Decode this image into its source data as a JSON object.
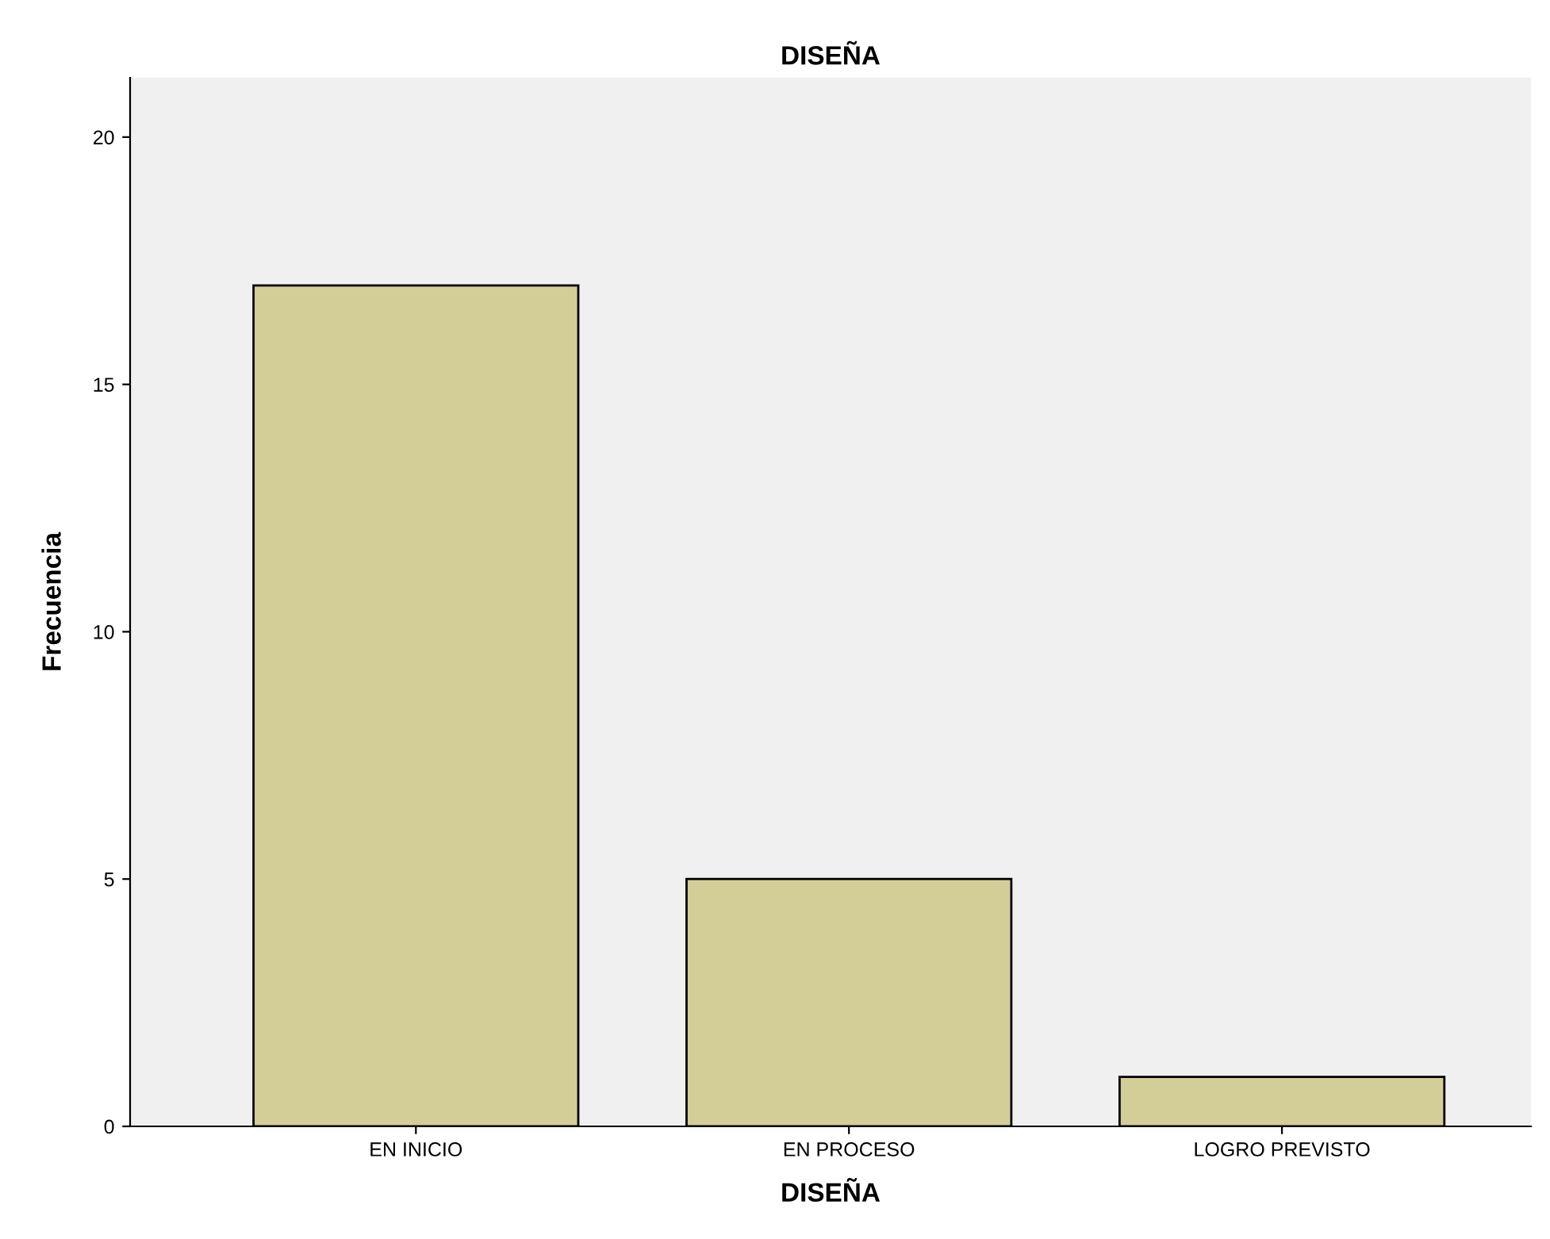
{
  "chart_data": {
    "type": "bar",
    "title": "DISEÑA",
    "xlabel": "DISEÑA",
    "ylabel": "Frecuencia",
    "categories": [
      "EN INICIO",
      "EN PROCESO",
      "LOGRO PREVISTO"
    ],
    "values": [
      17,
      5,
      1
    ],
    "color": "#d3ce98",
    "ylim": [
      0,
      21.2
    ],
    "yticks": [
      0,
      5,
      10,
      15,
      20
    ],
    "grid": false,
    "legend": false
  }
}
